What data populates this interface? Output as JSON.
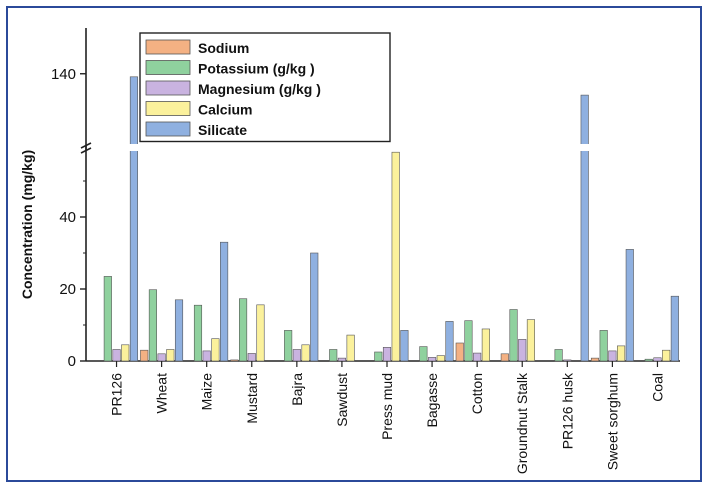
{
  "chart_data": {
    "type": "bar",
    "ylabel": "Concentration (mg/kg)",
    "y_axis": {
      "lower_segment": [
        0,
        60
      ],
      "upper_segment": [
        115,
        155
      ],
      "ticks": [
        0,
        20,
        40,
        140
      ],
      "break_between": [
        60,
        115
      ]
    },
    "legend_placement": "top-left",
    "categories": [
      "PR126",
      "Wheat",
      "Maize",
      "Mustard",
      "Bajra",
      "Sawdust",
      "Press mud",
      "Bagasse",
      "Cotton",
      "Groundnut Stalk",
      "PR126 husk",
      "Sweet sorghum",
      "Coal"
    ],
    "series": [
      {
        "name": "Sodium",
        "color": "#f4b183",
        "values": [
          0,
          3,
          0,
          0.3,
          0,
          0,
          0,
          0,
          5,
          2,
          0,
          0.8,
          0
        ]
      },
      {
        "name": "Potassium (g/kg )",
        "color": "#8fd19e",
        "values": [
          23.5,
          19.8,
          15.5,
          17.3,
          8.5,
          3.2,
          2.5,
          4,
          11.2,
          14.3,
          3.2,
          8.5,
          0.5
        ]
      },
      {
        "name": "Magnesium (g/kg )",
        "color": "#c9b3e0",
        "values": [
          3.2,
          2,
          2.8,
          2.1,
          3.2,
          0.8,
          3.8,
          1,
          2.2,
          6,
          0.3,
          2.8,
          0.9
        ]
      },
      {
        "name": "Calcium",
        "color": "#fbf19c",
        "values": [
          4.5,
          3.2,
          6.2,
          15.6,
          4.5,
          7.2,
          58,
          1.5,
          8.9,
          11.5,
          0,
          4.2,
          3
        ]
      },
      {
        "name": "Silicate",
        "color": "#8fb0e0",
        "values": [
          139,
          17,
          33,
          0,
          30,
          0,
          8.5,
          11,
          0,
          0,
          133,
          31,
          18
        ]
      }
    ]
  }
}
